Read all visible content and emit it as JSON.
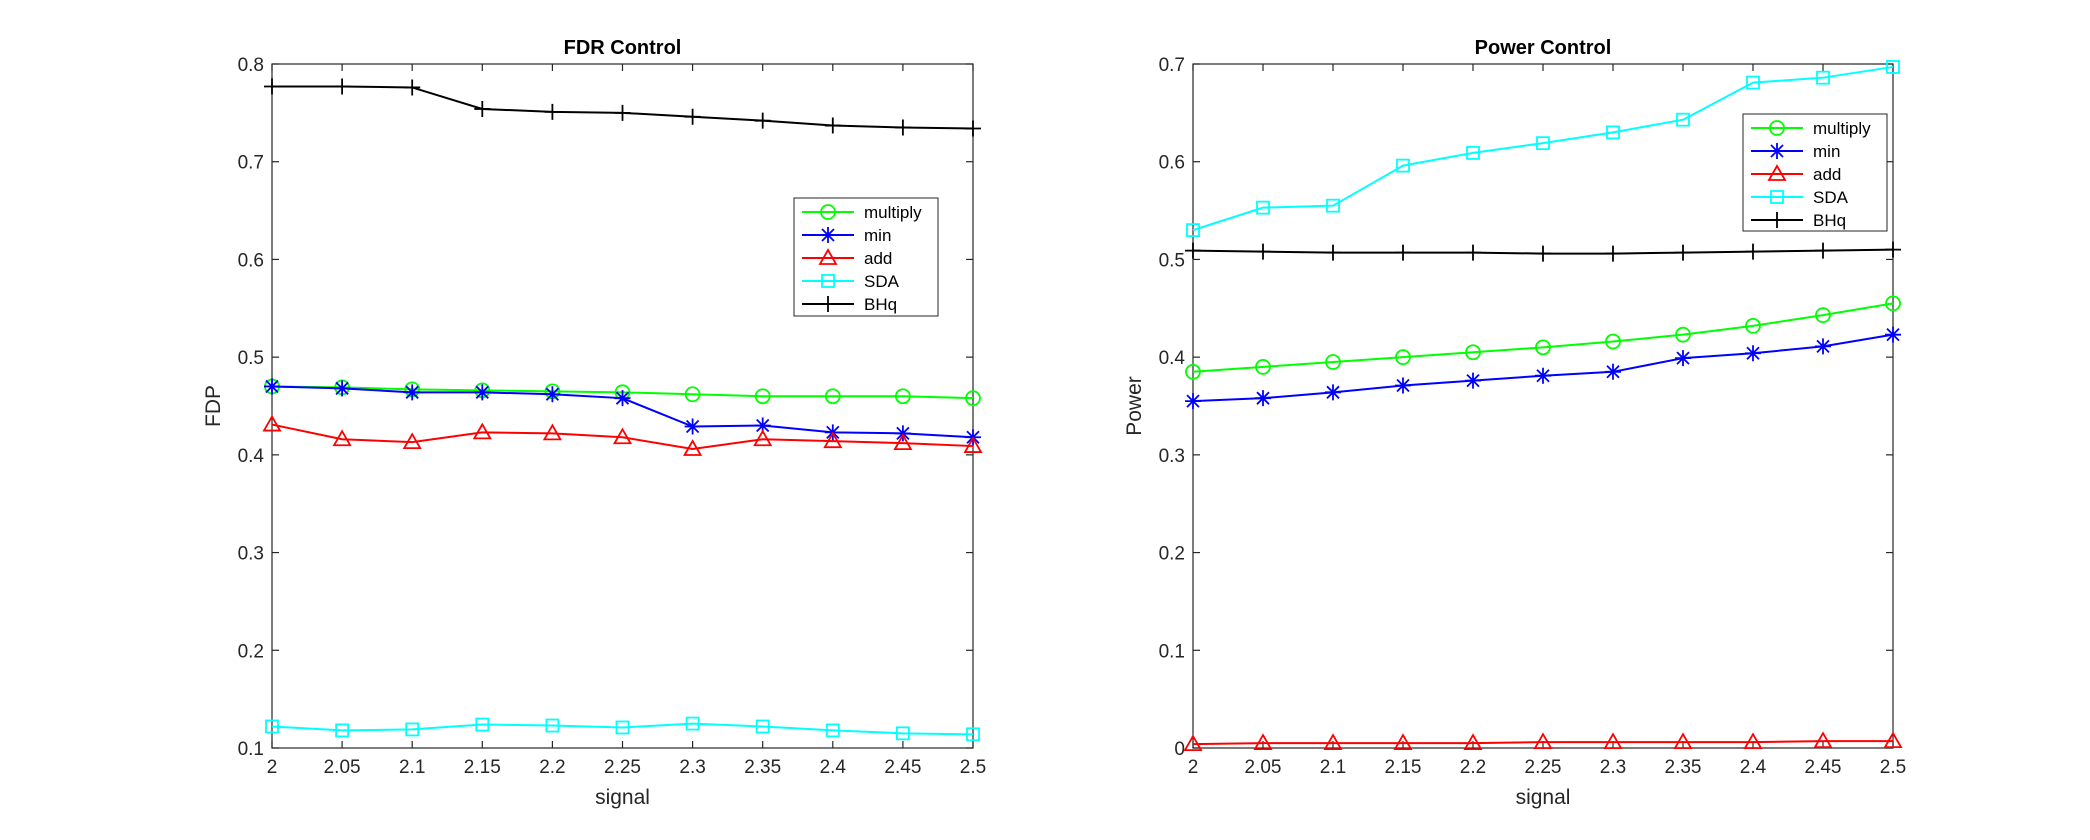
{
  "chart_data": [
    {
      "type": "line",
      "title": "FDR Control",
      "xlabel": "signal",
      "ylabel": "FDP",
      "xlim": [
        2,
        2.5
      ],
      "ylim": [
        0.1,
        0.8
      ],
      "xticks": [
        "2",
        "2.05",
        "2.1",
        "2.15",
        "2.2",
        "2.25",
        "2.3",
        "2.35",
        "2.4",
        "2.45",
        "2.5"
      ],
      "yticks": [
        "0.1",
        "0.2",
        "0.3",
        "0.4",
        "0.5",
        "0.6",
        "0.7",
        "0.8"
      ],
      "legend_position": "middle-right",
      "grid": false,
      "x": [
        2,
        2.05,
        2.1,
        2.15,
        2.2,
        2.25,
        2.3,
        2.35,
        2.4,
        2.45,
        2.5
      ],
      "series": [
        {
          "name": "multiply",
          "color": "#00ff00",
          "marker": "circle",
          "values": [
            0.47,
            0.469,
            0.467,
            0.466,
            0.465,
            0.464,
            0.462,
            0.46,
            0.46,
            0.46,
            0.458
          ]
        },
        {
          "name": "min",
          "color": "#0000ff",
          "marker": "star",
          "values": [
            0.47,
            0.468,
            0.464,
            0.464,
            0.462,
            0.458,
            0.429,
            0.43,
            0.423,
            0.422,
            0.418
          ]
        },
        {
          "name": "add",
          "color": "#ff0000",
          "marker": "triangle",
          "values": [
            0.431,
            0.416,
            0.413,
            0.423,
            0.422,
            0.418,
            0.406,
            0.416,
            0.414,
            0.412,
            0.409
          ]
        },
        {
          "name": "SDA",
          "color": "#00ffff",
          "marker": "square",
          "values": [
            0.122,
            0.118,
            0.119,
            0.124,
            0.123,
            0.121,
            0.125,
            0.122,
            0.118,
            0.115,
            0.114
          ]
        },
        {
          "name": "BHq",
          "color": "#000000",
          "marker": "plus",
          "values": [
            0.777,
            0.777,
            0.776,
            0.754,
            0.751,
            0.75,
            0.746,
            0.742,
            0.737,
            0.735,
            0.734
          ]
        }
      ]
    },
    {
      "type": "line",
      "title": "Power Control",
      "xlabel": "signal",
      "ylabel": "Power",
      "xlim": [
        2,
        2.5
      ],
      "ylim": [
        0,
        0.7
      ],
      "xticks": [
        "2",
        "2.05",
        "2.1",
        "2.15",
        "2.2",
        "2.25",
        "2.3",
        "2.35",
        "2.4",
        "2.45",
        "2.5"
      ],
      "yticks": [
        "0",
        "0.1",
        "0.2",
        "0.3",
        "0.4",
        "0.5",
        "0.6",
        "0.7"
      ],
      "legend_position": "top-right",
      "grid": false,
      "x": [
        2,
        2.05,
        2.1,
        2.15,
        2.2,
        2.25,
        2.3,
        2.35,
        2.4,
        2.45,
        2.5
      ],
      "series": [
        {
          "name": "multiply",
          "color": "#00ff00",
          "marker": "circle",
          "values": [
            0.385,
            0.39,
            0.395,
            0.4,
            0.405,
            0.41,
            0.416,
            0.423,
            0.432,
            0.443,
            0.455
          ]
        },
        {
          "name": "min",
          "color": "#0000ff",
          "marker": "star",
          "values": [
            0.355,
            0.358,
            0.364,
            0.371,
            0.376,
            0.381,
            0.385,
            0.399,
            0.404,
            0.411,
            0.423
          ]
        },
        {
          "name": "add",
          "color": "#ff0000",
          "marker": "triangle",
          "values": [
            0.004,
            0.005,
            0.005,
            0.005,
            0.005,
            0.006,
            0.006,
            0.006,
            0.006,
            0.007,
            0.007
          ]
        },
        {
          "name": "SDA",
          "color": "#00ffff",
          "marker": "square",
          "values": [
            0.53,
            0.553,
            0.555,
            0.596,
            0.609,
            0.619,
            0.63,
            0.643,
            0.681,
            0.686,
            0.697
          ]
        },
        {
          "name": "BHq",
          "color": "#000000",
          "marker": "plus",
          "values": [
            0.509,
            0.508,
            0.507,
            0.507,
            0.507,
            0.506,
            0.506,
            0.507,
            0.508,
            0.509,
            0.51
          ]
        }
      ]
    }
  ]
}
